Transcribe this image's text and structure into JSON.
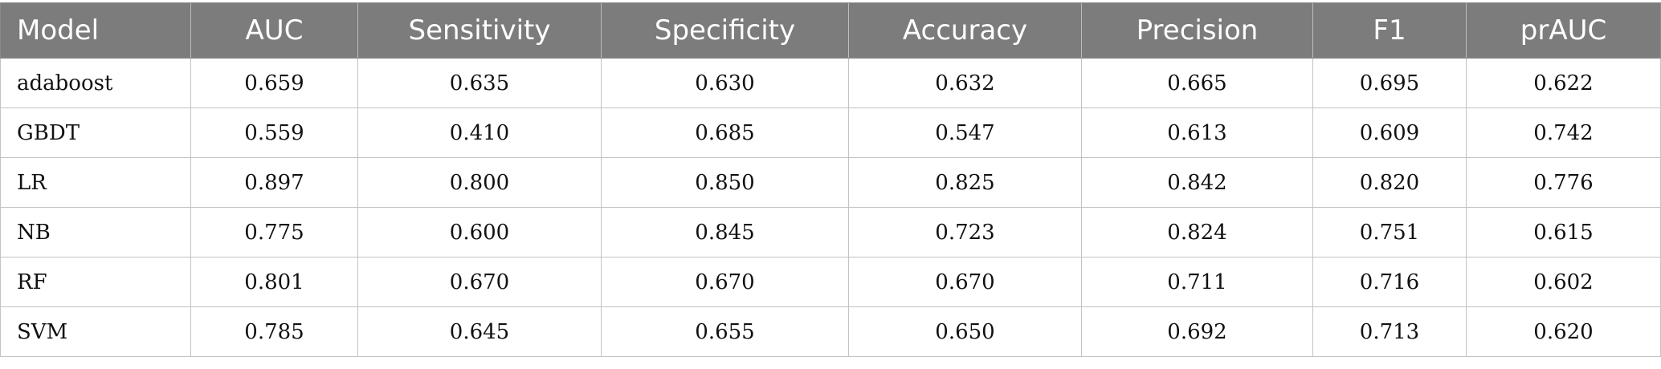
{
  "table": {
    "headers": [
      "Model",
      "AUC",
      "Sensitivity",
      "Specificity",
      "Accuracy",
      "Precision",
      "F1",
      "prAUC"
    ],
    "rows": [
      [
        "adaboost",
        "0.659",
        "0.635",
        "0.630",
        "0.632",
        "0.665",
        "0.695",
        "0.622"
      ],
      [
        "GBDT",
        "0.559",
        "0.410",
        "0.685",
        "0.547",
        "0.613",
        "0.609",
        "0.742"
      ],
      [
        "LR",
        "0.897",
        "0.800",
        "0.850",
        "0.825",
        "0.842",
        "0.820",
        "0.776"
      ],
      [
        "NB",
        "0.775",
        "0.600",
        "0.845",
        "0.723",
        "0.824",
        "0.751",
        "0.615"
      ],
      [
        "RF",
        "0.801",
        "0.670",
        "0.670",
        "0.670",
        "0.711",
        "0.716",
        "0.602"
      ],
      [
        "SVM",
        "0.785",
        "0.645",
        "0.655",
        "0.650",
        "0.692",
        "0.713",
        "0.620"
      ]
    ]
  },
  "colors": {
    "header_background": "#7c7c7c",
    "header_text": "#ffffff",
    "grid_line": "#c3c3c3"
  }
}
